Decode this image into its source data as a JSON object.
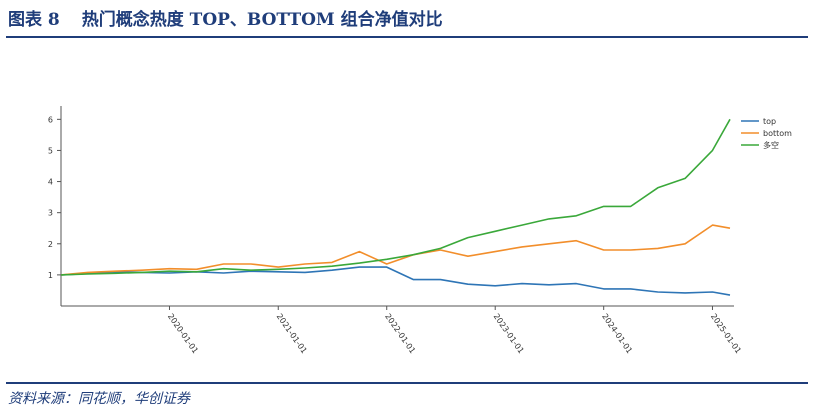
{
  "header": {
    "figure_number": "图表 8",
    "title": "热门概念热度 TOP、BOTTOM 组合净值对比"
  },
  "footer": {
    "source": "资料来源：同花顺，华创证券"
  },
  "chart_data": {
    "type": "line",
    "title": "",
    "xlabel": "",
    "ylabel": "",
    "x_ticks": [
      "2020-01-01",
      "2021-01-01",
      "2022-01-01",
      "2023-01-01",
      "2024-01-01",
      "2025-01-01"
    ],
    "y_ticks": [
      1,
      2,
      3,
      4,
      5,
      6
    ],
    "xlim": [
      "2019-01-01",
      "2025-03-01"
    ],
    "ylim": [
      0.0,
      6.3
    ],
    "grid": false,
    "legend_position": "top-right",
    "x": [
      "2019-01-01",
      "2019-04-01",
      "2019-07-01",
      "2019-10-01",
      "2020-01-01",
      "2020-04-01",
      "2020-07-01",
      "2020-10-01",
      "2021-01-01",
      "2021-04-01",
      "2021-07-01",
      "2021-10-01",
      "2022-01-01",
      "2022-04-01",
      "2022-07-01",
      "2022-10-01",
      "2023-01-01",
      "2023-04-01",
      "2023-07-01",
      "2023-10-01",
      "2024-01-01",
      "2024-04-01",
      "2024-07-01",
      "2024-10-01",
      "2025-01-01",
      "2025-03-01"
    ],
    "series": [
      {
        "name": "top",
        "color": "#2e75b6",
        "values": [
          1.0,
          1.04,
          1.1,
          1.08,
          1.06,
          1.1,
          1.06,
          1.12,
          1.1,
          1.08,
          1.15,
          1.25,
          1.25,
          0.85,
          0.85,
          0.7,
          0.65,
          0.72,
          0.68,
          0.72,
          0.55,
          0.55,
          0.45,
          0.42,
          0.45,
          0.35
        ]
      },
      {
        "name": "bottom",
        "color": "#f28e2b",
        "values": [
          1.0,
          1.08,
          1.12,
          1.15,
          1.2,
          1.18,
          1.35,
          1.35,
          1.25,
          1.35,
          1.4,
          1.75,
          1.35,
          1.65,
          1.8,
          1.6,
          1.75,
          1.9,
          2.0,
          2.1,
          1.8,
          1.8,
          1.85,
          2.0,
          2.6,
          2.5
        ]
      },
      {
        "name": "多空",
        "color": "#3aa83a",
        "values": [
          1.0,
          1.03,
          1.05,
          1.08,
          1.12,
          1.1,
          1.2,
          1.15,
          1.18,
          1.22,
          1.28,
          1.38,
          1.5,
          1.65,
          1.85,
          2.2,
          2.4,
          2.6,
          2.8,
          2.9,
          3.2,
          3.2,
          3.8,
          4.1,
          5.0,
          6.0
        ]
      }
    ]
  }
}
